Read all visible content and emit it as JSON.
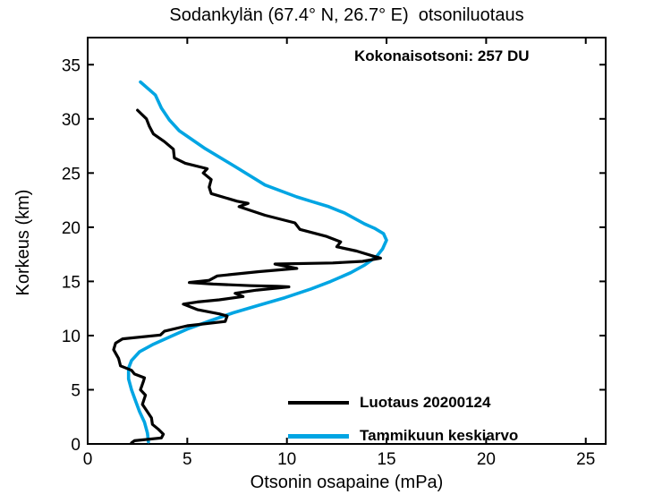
{
  "chart_data": {
    "type": "line",
    "title": "Sodankylän (67.4° N, 26.7° E)  otsoniluotaus",
    "xlabel": "Otsonin osapaine (mPa)",
    "ylabel": "Korkeus (km)",
    "annotation": "Kokonaisotsoni: 257 DU",
    "xlim": [
      0,
      26
    ],
    "ylim": [
      0,
      37.5
    ],
    "xticks": [
      0,
      5,
      10,
      15,
      20,
      25
    ],
    "yticks": [
      0,
      5,
      10,
      15,
      20,
      25,
      30,
      35
    ],
    "grid": false,
    "legend_position": "inside lower right, no border",
    "orientation": "vertical profile: x = ozone partial pressure (mPa), y = altitude (km)",
    "series": [
      {
        "name": "Luotaus 20200124",
        "color": "#000000",
        "points": [
          [
            2.2,
            0.1
          ],
          [
            2.35,
            0.3
          ],
          [
            3.7,
            0.55
          ],
          [
            3.8,
            0.9
          ],
          [
            3.55,
            1.35
          ],
          [
            3.25,
            1.8
          ],
          [
            3.2,
            2.4
          ],
          [
            2.95,
            3.1
          ],
          [
            2.75,
            3.65
          ],
          [
            2.9,
            4.5
          ],
          [
            2.65,
            5.0
          ],
          [
            2.8,
            5.8
          ],
          [
            2.85,
            6.1
          ],
          [
            2.35,
            6.45
          ],
          [
            2.2,
            6.8
          ],
          [
            1.65,
            7.2
          ],
          [
            1.55,
            7.9
          ],
          [
            1.3,
            8.7
          ],
          [
            1.4,
            9.3
          ],
          [
            1.75,
            9.7
          ],
          [
            3.65,
            10.05
          ],
          [
            3.85,
            10.4
          ],
          [
            5.0,
            10.9
          ],
          [
            6.9,
            11.3
          ],
          [
            7.0,
            11.8
          ],
          [
            6.6,
            12.0
          ],
          [
            5.5,
            12.4
          ],
          [
            4.8,
            12.9
          ],
          [
            5.5,
            13.1
          ],
          [
            6.6,
            13.3
          ],
          [
            7.8,
            13.6
          ],
          [
            7.4,
            13.9
          ],
          [
            8.5,
            14.2
          ],
          [
            10.1,
            14.5
          ],
          [
            9.5,
            14.55
          ],
          [
            8.2,
            14.6
          ],
          [
            6.3,
            14.75
          ],
          [
            5.1,
            14.9
          ],
          [
            6.1,
            15.1
          ],
          [
            6.5,
            15.5
          ],
          [
            8.6,
            15.9
          ],
          [
            10.5,
            16.2
          ],
          [
            9.4,
            16.6
          ],
          [
            12.3,
            16.7
          ],
          [
            13.8,
            16.85
          ],
          [
            14.7,
            17.15
          ],
          [
            14.3,
            17.35
          ],
          [
            13.5,
            17.8
          ],
          [
            12.5,
            18.2
          ],
          [
            12.7,
            18.65
          ],
          [
            12.0,
            19.15
          ],
          [
            10.65,
            19.8
          ],
          [
            10.4,
            20.4
          ],
          [
            8.9,
            21.1
          ],
          [
            7.6,
            21.9
          ],
          [
            8.05,
            22.2
          ],
          [
            7.5,
            22.4
          ],
          [
            6.2,
            23.1
          ],
          [
            6.1,
            23.7
          ],
          [
            6.2,
            24.4
          ],
          [
            5.8,
            25.0
          ],
          [
            6.0,
            25.4
          ],
          [
            4.9,
            25.9
          ],
          [
            4.35,
            26.4
          ],
          [
            4.3,
            27.2
          ],
          [
            3.85,
            27.9
          ],
          [
            3.3,
            28.6
          ],
          [
            3.1,
            29.3
          ],
          [
            2.95,
            30.0
          ],
          [
            2.5,
            30.8
          ]
        ]
      },
      {
        "name": "Tammikuun keskiarvo",
        "color": "#00A5E3",
        "points": [
          [
            3.05,
            0.2
          ],
          [
            3.0,
            1.0
          ],
          [
            2.85,
            2.0
          ],
          [
            2.6,
            3.0
          ],
          [
            2.4,
            4.0
          ],
          [
            2.2,
            5.0
          ],
          [
            2.05,
            6.0
          ],
          [
            2.05,
            7.0
          ],
          [
            2.2,
            7.7
          ],
          [
            2.6,
            8.5
          ],
          [
            3.3,
            9.2
          ],
          [
            4.15,
            9.9
          ],
          [
            5.0,
            10.6
          ],
          [
            6.2,
            11.4
          ],
          [
            7.3,
            12.1
          ],
          [
            8.6,
            12.8
          ],
          [
            9.9,
            13.5
          ],
          [
            11.2,
            14.3
          ],
          [
            12.2,
            15.0
          ],
          [
            13.2,
            15.8
          ],
          [
            13.9,
            16.5
          ],
          [
            14.5,
            17.3
          ],
          [
            14.8,
            18.0
          ],
          [
            15.0,
            18.8
          ],
          [
            14.85,
            19.4
          ],
          [
            14.4,
            19.9
          ],
          [
            13.9,
            20.3
          ],
          [
            12.9,
            21.3
          ],
          [
            12.1,
            21.9
          ],
          [
            11.2,
            22.4
          ],
          [
            10.5,
            22.8
          ],
          [
            8.9,
            23.9
          ],
          [
            7.4,
            25.6
          ],
          [
            5.9,
            27.25
          ],
          [
            4.6,
            28.9
          ],
          [
            4.1,
            29.9
          ],
          [
            3.7,
            31.0
          ],
          [
            3.4,
            32.2
          ],
          [
            2.65,
            33.4
          ]
        ]
      }
    ]
  },
  "colors": {
    "axes": "#000000",
    "background": "#ffffff",
    "sounding_line": "#000000",
    "mean_line": "#00A5E3"
  }
}
